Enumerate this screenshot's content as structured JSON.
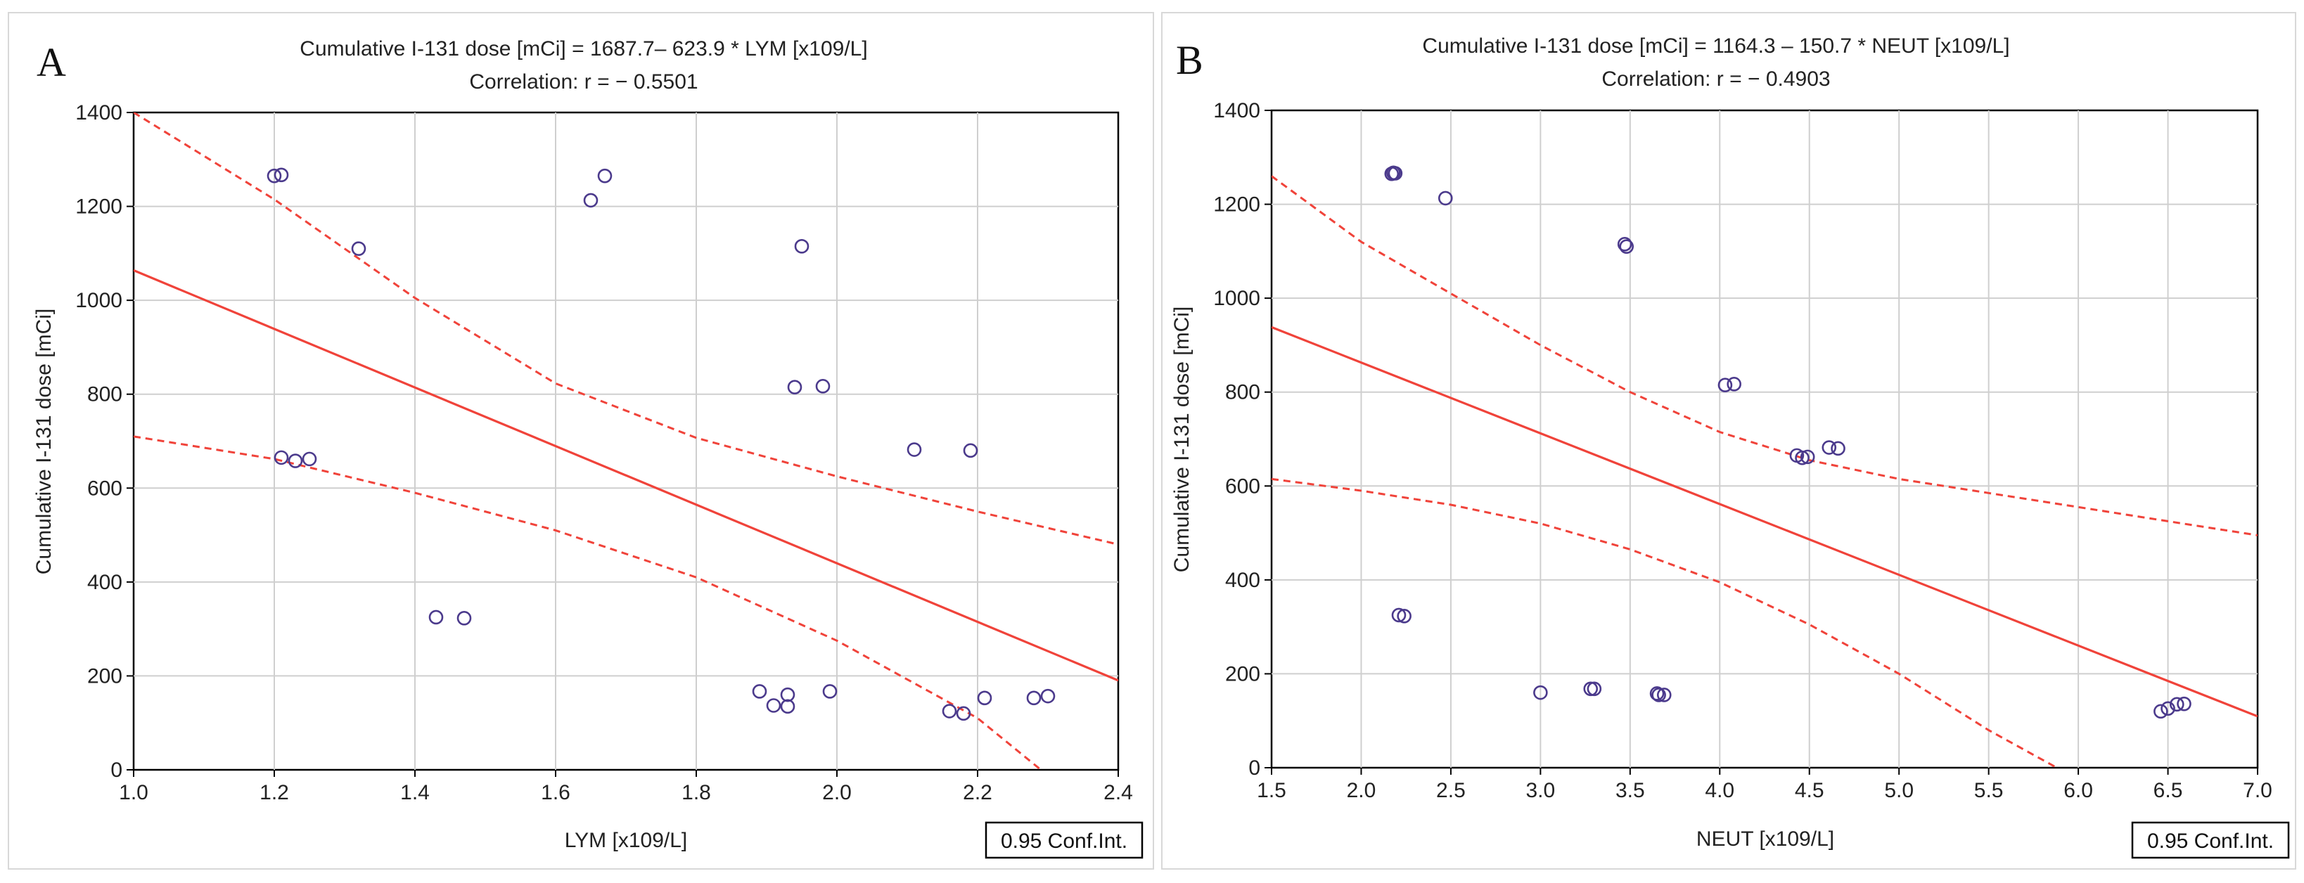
{
  "chart_data": [
    {
      "panel": "A",
      "type": "scatter",
      "title": "Cumulative I-131 dose [mCi] = 1687.7– 623.9  * LYM [x109/L]",
      "subtitle": "Correlation: r = − 0.5501",
      "xlabel": "LYM [x109/L]",
      "ylabel": "Cumulative I-131 dose [mCi]",
      "xlim": [
        1.0,
        2.4
      ],
      "ylim": [
        0,
        1400
      ],
      "xticks": [
        1.0,
        1.2,
        1.4,
        1.6,
        1.8,
        2.0,
        2.2,
        2.4
      ],
      "yticks": [
        0,
        200,
        400,
        600,
        800,
        1000,
        1200,
        1400
      ],
      "xtick_labels": [
        "1.0",
        "1.2",
        "1.4",
        "1.6",
        "1.8",
        "2.0",
        "2.2",
        "2.4"
      ],
      "ytick_labels": [
        "0",
        "200",
        "400",
        "600",
        "800",
        "1000",
        "1200",
        "1400"
      ],
      "grid": true,
      "legend": "0.95 Conf.Int.",
      "legend_position": "bottom-right",
      "fit": {
        "intercept": 1687.7,
        "slope": -623.9
      },
      "conf_upper": [
        [
          1.0,
          1400
        ],
        [
          1.2,
          1215
        ],
        [
          1.4,
          1005
        ],
        [
          1.6,
          823
        ],
        [
          1.8,
          707
        ],
        [
          2.0,
          625
        ],
        [
          2.2,
          550
        ],
        [
          2.4,
          480
        ]
      ],
      "conf_lower": [
        [
          1.0,
          710
        ],
        [
          1.2,
          662
        ],
        [
          1.4,
          590
        ],
        [
          1.6,
          510
        ],
        [
          1.8,
          410
        ],
        [
          2.0,
          275
        ],
        [
          2.2,
          110
        ],
        [
          2.29,
          0
        ]
      ],
      "points": [
        [
          1.2,
          1265
        ],
        [
          1.21,
          1267
        ],
        [
          1.32,
          1110
        ],
        [
          1.65,
          1213
        ],
        [
          1.67,
          1265
        ],
        [
          1.95,
          1115
        ],
        [
          1.94,
          815
        ],
        [
          1.98,
          817
        ],
        [
          1.21,
          665
        ],
        [
          1.23,
          658
        ],
        [
          1.25,
          662
        ],
        [
          1.43,
          325
        ],
        [
          1.47,
          323
        ],
        [
          2.11,
          682
        ],
        [
          2.19,
          680
        ],
        [
          1.89,
          167
        ],
        [
          1.91,
          137
        ],
        [
          1.93,
          160
        ],
        [
          1.93,
          135
        ],
        [
          1.99,
          167
        ],
        [
          2.16,
          125
        ],
        [
          2.18,
          120
        ],
        [
          2.21,
          153
        ],
        [
          2.28,
          153
        ],
        [
          2.3,
          157
        ]
      ]
    },
    {
      "panel": "B",
      "type": "scatter",
      "title": "Cumulative I-131 dose [mCi] = 1164.3 – 150.7  * NEUT [x109/L]",
      "subtitle": "Correlation: r = − 0.4903",
      "xlabel": "NEUT [x109/L]",
      "ylabel": "Cumulative I-131 dose [mCi]",
      "xlim": [
        1.5,
        7.0
      ],
      "ylim": [
        0,
        1400
      ],
      "xticks": [
        1.5,
        2.0,
        2.5,
        3.0,
        3.5,
        4.0,
        4.5,
        5.0,
        5.5,
        6.0,
        6.5,
        7.0
      ],
      "yticks": [
        0,
        200,
        400,
        600,
        800,
        1000,
        1200,
        1400
      ],
      "xtick_labels": [
        "1.5",
        "2.0",
        "2.5",
        "3.0",
        "3.5",
        "4.0",
        "4.5",
        "5.0",
        "5.5",
        "6.0",
        "6.5",
        "7.0"
      ],
      "ytick_labels": [
        "0",
        "200",
        "400",
        "600",
        "800",
        "1000",
        "1200",
        "1400"
      ],
      "grid": true,
      "legend": "0.95 Conf.Int.",
      "legend_position": "bottom-right",
      "fit": {
        "intercept": 1164.3,
        "slope": -150.7
      },
      "conf_upper": [
        [
          1.5,
          1260
        ],
        [
          2.0,
          1120
        ],
        [
          2.5,
          1010
        ],
        [
          3.0,
          900
        ],
        [
          3.5,
          800
        ],
        [
          4.0,
          715
        ],
        [
          4.5,
          655
        ],
        [
          5.0,
          615
        ],
        [
          5.5,
          585
        ],
        [
          6.0,
          555
        ],
        [
          6.5,
          525
        ],
        [
          7.0,
          495
        ]
      ],
      "conf_lower": [
        [
          1.5,
          615
        ],
        [
          2.0,
          590
        ],
        [
          2.5,
          560
        ],
        [
          3.0,
          520
        ],
        [
          3.5,
          465
        ],
        [
          4.0,
          395
        ],
        [
          4.5,
          305
        ],
        [
          5.0,
          200
        ],
        [
          5.5,
          80
        ],
        [
          5.88,
          0
        ]
      ],
      "points": [
        [
          2.17,
          1265
        ],
        [
          2.18,
          1267
        ],
        [
          2.19,
          1266
        ],
        [
          2.47,
          1213
        ],
        [
          3.47,
          1115
        ],
        [
          3.48,
          1110
        ],
        [
          4.03,
          815
        ],
        [
          4.08,
          817
        ],
        [
          4.43,
          665
        ],
        [
          4.46,
          660
        ],
        [
          4.49,
          662
        ],
        [
          4.61,
          682
        ],
        [
          4.66,
          680
        ],
        [
          2.21,
          325
        ],
        [
          2.24,
          323
        ],
        [
          3.0,
          160
        ],
        [
          3.28,
          168
        ],
        [
          3.3,
          168
        ],
        [
          3.65,
          158
        ],
        [
          3.66,
          155
        ],
        [
          3.69,
          155
        ],
        [
          6.46,
          120
        ],
        [
          6.5,
          126
        ],
        [
          6.55,
          135
        ],
        [
          6.59,
          136
        ]
      ]
    }
  ]
}
